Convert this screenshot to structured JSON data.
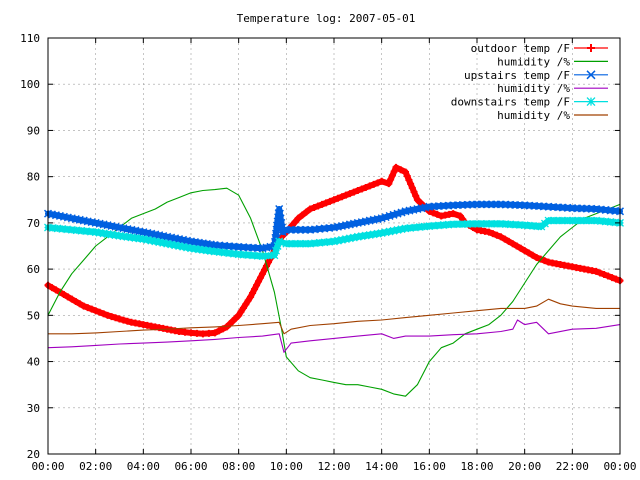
{
  "chart_data": {
    "type": "line",
    "title": "Temperature log: 2007-05-01",
    "xlabel": "",
    "ylabel": "",
    "x_range_hours": [
      0,
      24
    ],
    "ylim": [
      20,
      110
    ],
    "grid": true,
    "legend_position": "top-right",
    "x_ticks": [
      {
        "hour": 0,
        "label": "00:00"
      },
      {
        "hour": 2,
        "label": "02:00"
      },
      {
        "hour": 4,
        "label": "04:00"
      },
      {
        "hour": 6,
        "label": "06:00"
      },
      {
        "hour": 8,
        "label": "08:00"
      },
      {
        "hour": 10,
        "label": "10:00"
      },
      {
        "hour": 12,
        "label": "12:00"
      },
      {
        "hour": 14,
        "label": "14:00"
      },
      {
        "hour": 16,
        "label": "16:00"
      },
      {
        "hour": 18,
        "label": "18:00"
      },
      {
        "hour": 20,
        "label": "20:00"
      },
      {
        "hour": 22,
        "label": "22:00"
      },
      {
        "hour": 24,
        "label": "00:00"
      }
    ],
    "y_ticks": [
      20,
      30,
      40,
      50,
      60,
      70,
      80,
      90,
      100,
      110
    ],
    "series": [
      {
        "name": "outdoor temp /F",
        "color": "#ff0000",
        "marker": "plus",
        "points": [
          [
            0,
            56.5
          ],
          [
            0.5,
            55
          ],
          [
            1,
            53.5
          ],
          [
            1.5,
            52
          ],
          [
            2,
            51
          ],
          [
            2.5,
            50
          ],
          [
            3,
            49.2
          ],
          [
            3.5,
            48.5
          ],
          [
            4,
            48
          ],
          [
            4.5,
            47.5
          ],
          [
            5,
            47
          ],
          [
            5.5,
            46.5
          ],
          [
            6,
            46.2
          ],
          [
            6.5,
            46
          ],
          [
            7,
            46.2
          ],
          [
            7.5,
            47.5
          ],
          [
            8,
            50
          ],
          [
            8.5,
            54
          ],
          [
            9,
            59
          ],
          [
            9.5,
            64
          ],
          [
            9.8,
            67
          ],
          [
            10,
            68
          ],
          [
            10.5,
            71
          ],
          [
            11,
            73
          ],
          [
            11.5,
            74
          ],
          [
            12,
            75
          ],
          [
            12.5,
            76
          ],
          [
            13,
            77
          ],
          [
            13.5,
            78
          ],
          [
            14,
            79
          ],
          [
            14.3,
            78.5
          ],
          [
            14.6,
            82
          ],
          [
            15,
            81
          ],
          [
            15.5,
            75
          ],
          [
            16,
            72.5
          ],
          [
            16.5,
            71.5
          ],
          [
            17,
            72
          ],
          [
            17.3,
            71.5
          ],
          [
            17.5,
            70
          ],
          [
            18,
            68.5
          ],
          [
            18.5,
            68
          ],
          [
            19,
            67
          ],
          [
            19.5,
            65.5
          ],
          [
            20,
            64
          ],
          [
            20.5,
            62.5
          ],
          [
            21,
            61.5
          ],
          [
            21.5,
            61
          ],
          [
            22,
            60.5
          ],
          [
            22.5,
            60
          ],
          [
            23,
            59.5
          ],
          [
            23.5,
            58.5
          ],
          [
            24,
            57.5
          ]
        ]
      },
      {
        "name": "humidity /%",
        "color": "#00a000",
        "marker": "none",
        "points": [
          [
            0,
            50
          ],
          [
            0.5,
            55
          ],
          [
            1,
            59
          ],
          [
            1.5,
            62
          ],
          [
            2,
            65
          ],
          [
            2.5,
            67
          ],
          [
            3,
            69
          ],
          [
            3.5,
            71
          ],
          [
            4,
            72
          ],
          [
            4.5,
            73
          ],
          [
            5,
            74.5
          ],
          [
            5.5,
            75.5
          ],
          [
            6,
            76.5
          ],
          [
            6.5,
            77
          ],
          [
            7,
            77.2
          ],
          [
            7.5,
            77.5
          ],
          [
            8,
            76
          ],
          [
            8.5,
            71
          ],
          [
            9,
            64
          ],
          [
            9.5,
            55
          ],
          [
            9.8,
            47
          ],
          [
            10,
            41
          ],
          [
            10.5,
            38
          ],
          [
            11,
            36.5
          ],
          [
            11.5,
            36
          ],
          [
            12,
            35.5
          ],
          [
            12.5,
            35
          ],
          [
            13,
            35
          ],
          [
            13.5,
            34.5
          ],
          [
            14,
            34
          ],
          [
            14.5,
            33
          ],
          [
            15,
            32.5
          ],
          [
            15.5,
            35
          ],
          [
            16,
            40
          ],
          [
            16.5,
            43
          ],
          [
            17,
            44
          ],
          [
            17.5,
            46
          ],
          [
            18,
            47
          ],
          [
            18.5,
            48
          ],
          [
            19,
            50
          ],
          [
            19.5,
            53
          ],
          [
            20,
            57
          ],
          [
            20.5,
            61
          ],
          [
            21,
            64
          ],
          [
            21.5,
            67
          ],
          [
            22,
            69
          ],
          [
            22.5,
            71
          ],
          [
            23,
            72
          ],
          [
            23.5,
            73
          ],
          [
            24,
            74
          ]
        ]
      },
      {
        "name": "upstairs temp /F",
        "color": "#0060e0",
        "marker": "x",
        "points": [
          [
            0,
            72
          ],
          [
            1,
            71
          ],
          [
            2,
            70
          ],
          [
            3,
            69
          ],
          [
            4,
            68
          ],
          [
            5,
            67
          ],
          [
            6,
            66
          ],
          [
            7,
            65.2
          ],
          [
            8,
            64.8
          ],
          [
            9,
            64.5
          ],
          [
            9.5,
            65
          ],
          [
            9.7,
            73
          ],
          [
            9.85,
            68
          ],
          [
            10,
            68.5
          ],
          [
            11,
            68.5
          ],
          [
            12,
            69
          ],
          [
            13,
            70
          ],
          [
            14,
            71
          ],
          [
            15,
            72.5
          ],
          [
            16,
            73.5
          ],
          [
            17,
            73.8
          ],
          [
            18,
            74
          ],
          [
            19,
            74
          ],
          [
            20,
            73.8
          ],
          [
            21,
            73.5
          ],
          [
            22,
            73.2
          ],
          [
            23,
            73
          ],
          [
            24,
            72.5
          ]
        ]
      },
      {
        "name": "humidity /%",
        "color": "#a000c0",
        "marker": "none",
        "points": [
          [
            0,
            43
          ],
          [
            1,
            43.2
          ],
          [
            2,
            43.5
          ],
          [
            3,
            43.8
          ],
          [
            4,
            44
          ],
          [
            5,
            44.2
          ],
          [
            6,
            44.5
          ],
          [
            7,
            44.8
          ],
          [
            8,
            45.2
          ],
          [
            9,
            45.5
          ],
          [
            9.7,
            46
          ],
          [
            9.9,
            42
          ],
          [
            10.2,
            44
          ],
          [
            11,
            44.5
          ],
          [
            12,
            45
          ],
          [
            13,
            45.5
          ],
          [
            14,
            46
          ],
          [
            14.5,
            45
          ],
          [
            15,
            45.5
          ],
          [
            16,
            45.5
          ],
          [
            17,
            45.8
          ],
          [
            18,
            46
          ],
          [
            19,
            46.5
          ],
          [
            19.5,
            47
          ],
          [
            19.7,
            49
          ],
          [
            20,
            48
          ],
          [
            20.5,
            48.5
          ],
          [
            21,
            46
          ],
          [
            22,
            47
          ],
          [
            23,
            47.2
          ],
          [
            24,
            48
          ]
        ]
      },
      {
        "name": "downstairs temp /F",
        "color": "#00e0e0",
        "marker": "star",
        "points": [
          [
            0,
            69
          ],
          [
            1,
            68.5
          ],
          [
            2,
            68
          ],
          [
            3,
            67.2
          ],
          [
            4,
            66.5
          ],
          [
            5,
            65.5
          ],
          [
            6,
            64.5
          ],
          [
            7,
            63.8
          ],
          [
            8,
            63.2
          ],
          [
            9,
            62.8
          ],
          [
            9.5,
            63
          ],
          [
            9.7,
            66
          ],
          [
            10,
            65.5
          ],
          [
            11,
            65.5
          ],
          [
            12,
            66
          ],
          [
            13,
            67
          ],
          [
            14,
            67.8
          ],
          [
            15,
            68.8
          ],
          [
            16,
            69.3
          ],
          [
            17,
            69.7
          ],
          [
            18,
            69.8
          ],
          [
            19,
            69.8
          ],
          [
            20,
            69.5
          ],
          [
            20.7,
            69.2
          ],
          [
            21,
            70.5
          ],
          [
            22,
            70.5
          ],
          [
            23,
            70.5
          ],
          [
            24,
            70
          ]
        ]
      },
      {
        "name": "humidity /%",
        "color": "#a04000",
        "marker": "none",
        "points": [
          [
            0,
            46
          ],
          [
            1,
            46
          ],
          [
            2,
            46.2
          ],
          [
            3,
            46.5
          ],
          [
            4,
            46.8
          ],
          [
            5,
            47
          ],
          [
            6,
            47.3
          ],
          [
            7,
            47.5
          ],
          [
            8,
            47.8
          ],
          [
            9,
            48.2
          ],
          [
            9.7,
            48.5
          ],
          [
            9.9,
            46
          ],
          [
            10.2,
            47
          ],
          [
            11,
            47.8
          ],
          [
            12,
            48.2
          ],
          [
            13,
            48.7
          ],
          [
            14,
            49
          ],
          [
            15,
            49.5
          ],
          [
            16,
            50
          ],
          [
            17,
            50.5
          ],
          [
            18,
            51
          ],
          [
            19,
            51.5
          ],
          [
            20,
            51.5
          ],
          [
            20.5,
            52
          ],
          [
            21,
            53.5
          ],
          [
            21.5,
            52.5
          ],
          [
            22,
            52
          ],
          [
            23,
            51.5
          ],
          [
            24,
            51.5
          ]
        ]
      }
    ]
  }
}
